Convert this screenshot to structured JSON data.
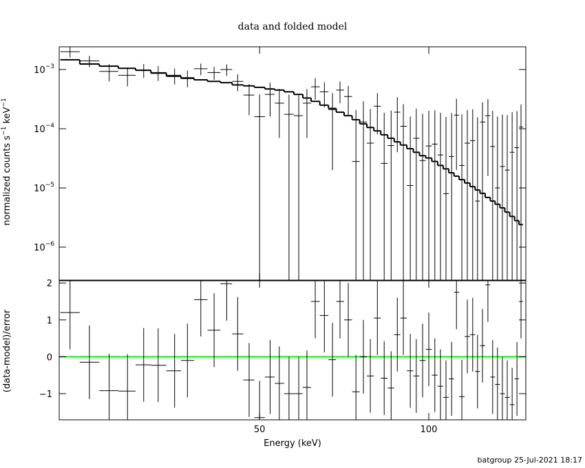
{
  "chart_data": [
    {
      "type": "errorbar",
      "title": "data and folded model",
      "ylabel": [
        "normalized counts s",
        "−1",
        " keV",
        "−1"
      ],
      "xscale": "log",
      "yscale": "log",
      "xlim": [
        22.0,
        148.8
      ],
      "ylim": [
        2.77e-07,
        0.00242
      ],
      "yticks": [
        {
          "value": 0.001,
          "label": [
            "10",
            "−3"
          ]
        },
        {
          "value": 0.0001,
          "label": [
            "10",
            "−4"
          ]
        },
        {
          "value": 1e-05,
          "label": [
            "10",
            "−5"
          ]
        },
        {
          "value": 1e-06,
          "label": [
            "10",
            "−6"
          ]
        }
      ],
      "color": "#000000",
      "model_color": "#000000",
      "x": [
        23.0,
        24.9,
        27.0,
        29.1,
        31.1,
        33.0,
        35.3,
        37.2,
        39.3,
        41.5,
        43.7,
        45.7,
        47.9,
        50.0,
        52.2,
        54.2,
        56.4,
        58.7,
        60.7,
        62.8,
        65.2,
        67.4,
        69.5,
        71.9,
        74.2,
        76.5,
        78.7,
        81.0,
        83.3,
        85.7,
        87.9,
        90.1,
        92.7,
        95.0,
        97.5,
        100.0,
        102.5,
        104.9,
        107.3,
        109.8,
        112.0,
        114.5,
        117.1,
        119.7,
        122.1,
        124.6,
        127.4,
        129.9,
        132.5,
        135.2,
        137.9,
        140.7,
        143.5,
        145.9
      ],
      "values": [
        0.002,
        0.0014,
        0.00093,
        0.0008,
        0.00098,
        0.00089,
        0.0008,
        0.00073,
        0.00103,
        0.00089,
        0.001,
        0.00063,
        0.00037,
        0.00016,
        0.00038,
        0.00027,
        0.000175,
        0.000166,
        0.00027,
        0.00051,
        0.00042,
        0.00021,
        0.00045,
        0.00035,
        2.8e-05,
        0.00013,
        5.7e-05,
        0.00024,
        2.6e-05,
        5.2e-05,
        0.00019,
        0.00011,
        1.1e-05,
        6.9e-05,
        2.9e-05,
        5.1e-05,
        5.5e-05,
        3.6e-05,
        8e-06,
        3.4e-05,
        0.00017,
        2.4e-05,
        5.7e-05,
        6.3e-05,
        6e-06,
        0.00013,
        0.000166,
        5e-05,
        1e-05,
        2.3e-05,
        2e-05,
        4e-05,
        4.8e-05,
        0.000107
      ],
      "errors": [
        0.0004,
        0.0003,
        0.0003,
        0.00028,
        0.00026,
        0.00025,
        0.00024,
        0.00023,
        0.00023,
        0.00022,
        0.00022,
        0.0002,
        0.0002,
        0.00022,
        0.00022,
        0.0002,
        0.0002,
        0.0002,
        0.0002,
        0.0002,
        0.00019,
        0.00019,
        0.00018,
        0.00018,
        0.00018,
        0.00016,
        0.00016,
        0.00016,
        0.00016,
        0.00015,
        0.00015,
        0.00015,
        0.00015,
        0.00015,
        0.00015,
        0.00015,
        0.00015,
        0.00015,
        0.00015,
        0.00015,
        0.00015,
        0.00015,
        0.00015,
        0.00015,
        0.00015,
        0.00015,
        0.00015,
        0.00015,
        0.00015,
        0.00015,
        0.00015,
        0.00015,
        0.00015,
        0.00015
      ],
      "model": [
        0.00146,
        0.00124,
        0.00114,
        0.00105,
        0.00097,
        0.00087,
        0.00077,
        0.00071,
        0.00067,
        0.00063,
        0.0006,
        0.00055,
        0.00053,
        0.0005,
        0.00047,
        0.00045,
        0.00042,
        0.00038,
        0.00033,
        0.00029,
        0.00025,
        0.00022,
        0.00019,
        0.000166,
        0.000142,
        0.000121,
        0.000105,
        9.2e-05,
        7.9e-05,
        6.9e-05,
        6e-05,
        5.3e-05,
        4.6e-05,
        4e-05,
        3.5e-05,
        3.2e-05,
        2.8e-05,
        2.4e-05,
        2.1e-05,
        1.8e-05,
        1.58e-05,
        1.38e-05,
        1.21e-05,
        1.05e-05,
        9.2e-06,
        8.1e-06,
        6.9e-06,
        6e-06,
        5.3e-06,
        4.6e-06,
        3.9e-06,
        3.3e-06,
        2.8e-06,
        2.4e-06
      ]
    },
    {
      "type": "residual",
      "xlabel": "Energy (keV)",
      "ylabel": "(data-model)/error",
      "xscale": "log",
      "xlim": [
        22.0,
        148.8
      ],
      "xticks": [
        50,
        100
      ],
      "ylim": [
        -1.71,
        2.06
      ],
      "yticks": [
        {
          "value": -1,
          "label": "−1"
        },
        0,
        1,
        2
      ],
      "color": "#000000",
      "error": 1,
      "reference": 0,
      "reference_color": "#00ff00",
      "values": [
        1.2,
        -0.15,
        -0.92,
        -0.93,
        -0.22,
        -0.23,
        -0.38,
        -0.1,
        1.55,
        0.72,
        1.98,
        0.62,
        -0.63,
        -1.65,
        -0.55,
        -0.72,
        -1.0,
        -1.0,
        -0.83,
        1.5,
        1.12,
        -0.08,
        1.5,
        1.0,
        -0.95,
        0.0,
        -0.52,
        1.05,
        -0.58,
        -0.85,
        0.6,
        1.05,
        -0.38,
        -0.52,
        -0.1,
        0.2,
        -0.5,
        -0.8,
        -1.1,
        -0.6,
        1.75,
        -1.08,
        0.55,
        0.6,
        -0.4,
        0.3,
        1.95,
        -0.55,
        -0.75,
        -1.0,
        -1.1,
        -1.3,
        -0.6,
        1.5
      ]
    }
  ],
  "footer": "batgroup 25-Jul-2021 18:17"
}
